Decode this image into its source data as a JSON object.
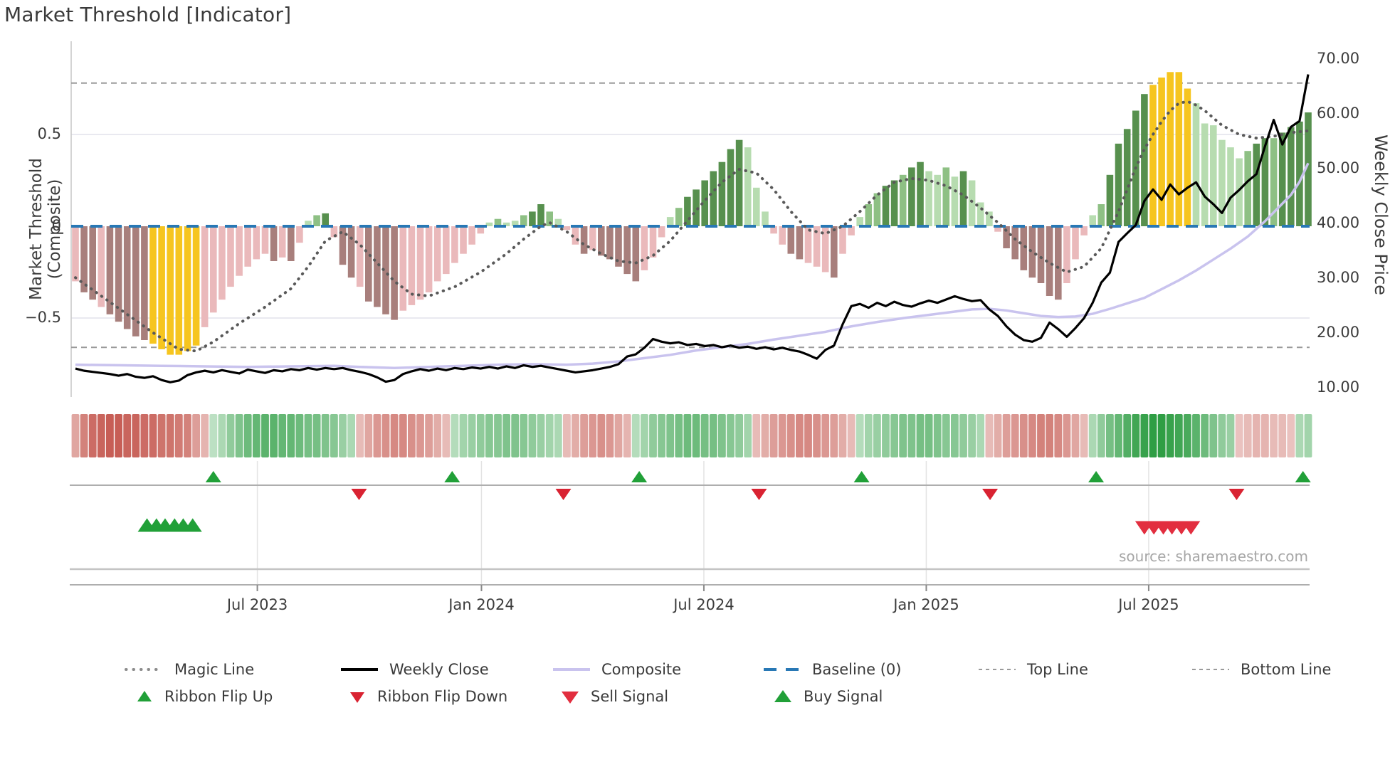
{
  "title": "Market Threshold [Indicator]",
  "source_text": "source: sharemaestro.com",
  "axes": {
    "left_label": "Market Threshold (Composite)",
    "right_label": "Weekly Close Price",
    "left_ticks": [
      "0.5",
      "0",
      "−0.5"
    ],
    "right_ticks": [
      "70.00",
      "60.00",
      "50.00",
      "40.00",
      "30.00",
      "20.00",
      "10.00"
    ],
    "x_ticks": [
      "Jul 2023",
      "Jan 2024",
      "Jul 2024",
      "Jan 2025",
      "Jul 2025"
    ]
  },
  "legend": {
    "row1": [
      {
        "label": "Magic Line"
      },
      {
        "label": "Weekly Close"
      },
      {
        "label": "Composite"
      },
      {
        "label": "Baseline (0)"
      },
      {
        "label": "Top Line"
      },
      {
        "label": "Bottom Line"
      }
    ],
    "row2": [
      {
        "label": "Ribbon Flip Up"
      },
      {
        "label": "Ribbon Flip Down"
      },
      {
        "label": "Sell Signal"
      },
      {
        "label": "Buy Signal"
      }
    ]
  },
  "colors": {
    "background": "#ffffff",
    "title_text": "#3a3a3a",
    "axis_text": "#3c3c3c",
    "grid": "#e9e9f0",
    "spine": "#c9c9c9",
    "separator": "#aeaeae",
    "panel_grid": "#e3e3e3",
    "baseline_blue": "#2878b5",
    "magic_line": "#595959",
    "weekly_close": "#000000",
    "composite_line": "#c9c3ee",
    "top_bottom_line": "#9a9a9a",
    "bar_pink": "#eab9bb",
    "bar_mauve": "#a87f7c",
    "bar_yellow": "#f6c51f",
    "bar_light_green": "#b7dcb0",
    "bar_mid_green": "#8ec084",
    "bar_dark_green": "#57904e",
    "ribbon_red": "#c4574e",
    "ribbon_green": "#2f9e44",
    "flip_up_green": "#21a038",
    "flip_down_red": "#d92332",
    "sell_red": "#e22e3f",
    "buy_green": "#21a038",
    "source_text": "#a6a6a6"
  },
  "chart_data": {
    "type": "bar+line",
    "title": "Market Threshold [Indicator]",
    "weeks": 144,
    "x_range_note": "weekly data, approx Feb 2023 - Nov 2025",
    "left_ylim": [
      -0.93,
      1.0
    ],
    "right_ylim": [
      8.3,
      73.0
    ],
    "baseline": 0,
    "top_line": 0.78,
    "bottom_line": -0.66,
    "x_tick_weeks": [
      21.1,
      47.1,
      72.9,
      98.7,
      124.5
    ],
    "left_tick_values": [
      0.5,
      0,
      -0.5
    ],
    "right_tick_values": [
      70,
      60,
      50,
      40,
      30,
      20,
      10
    ],
    "composite_bars": [
      [
        -0.3,
        "p"
      ],
      [
        -0.36,
        "m"
      ],
      [
        -0.4,
        "m"
      ],
      [
        -0.44,
        "p"
      ],
      [
        -0.48,
        "m"
      ],
      [
        -0.52,
        "m"
      ],
      [
        -0.56,
        "m"
      ],
      [
        -0.6,
        "m"
      ],
      [
        -0.62,
        "m"
      ],
      [
        -0.64,
        "y"
      ],
      [
        -0.67,
        "y"
      ],
      [
        -0.7,
        "y"
      ],
      [
        -0.7,
        "y"
      ],
      [
        -0.68,
        "y"
      ],
      [
        -0.65,
        "y"
      ],
      [
        -0.55,
        "p"
      ],
      [
        -0.47,
        "p"
      ],
      [
        -0.4,
        "p"
      ],
      [
        -0.33,
        "p"
      ],
      [
        -0.27,
        "p"
      ],
      [
        -0.22,
        "p"
      ],
      [
        -0.18,
        "p"
      ],
      [
        -0.15,
        "p"
      ],
      [
        -0.19,
        "m"
      ],
      [
        -0.17,
        "p"
      ],
      [
        -0.19,
        "m"
      ],
      [
        -0.09,
        "p"
      ],
      [
        0.03,
        "l"
      ],
      [
        0.06,
        "g"
      ],
      [
        0.07,
        "d"
      ],
      [
        -0.06,
        "p"
      ],
      [
        -0.21,
        "m"
      ],
      [
        -0.28,
        "m"
      ],
      [
        -0.33,
        "p"
      ],
      [
        -0.41,
        "m"
      ],
      [
        -0.44,
        "m"
      ],
      [
        -0.48,
        "m"
      ],
      [
        -0.51,
        "m"
      ],
      [
        -0.46,
        "p"
      ],
      [
        -0.43,
        "p"
      ],
      [
        -0.4,
        "p"
      ],
      [
        -0.36,
        "p"
      ],
      [
        -0.3,
        "p"
      ],
      [
        -0.26,
        "p"
      ],
      [
        -0.2,
        "p"
      ],
      [
        -0.15,
        "p"
      ],
      [
        -0.1,
        "p"
      ],
      [
        -0.04,
        "p"
      ],
      [
        0.02,
        "l"
      ],
      [
        0.04,
        "g"
      ],
      [
        0.02,
        "l"
      ],
      [
        0.03,
        "l"
      ],
      [
        0.06,
        "g"
      ],
      [
        0.08,
        "d"
      ],
      [
        0.12,
        "d"
      ],
      [
        0.08,
        "g"
      ],
      [
        0.04,
        "l"
      ],
      [
        -0.02,
        "p"
      ],
      [
        -0.1,
        "p"
      ],
      [
        -0.15,
        "m"
      ],
      [
        -0.13,
        "p"
      ],
      [
        -0.16,
        "m"
      ],
      [
        -0.18,
        "m"
      ],
      [
        -0.22,
        "m"
      ],
      [
        -0.26,
        "m"
      ],
      [
        -0.3,
        "m"
      ],
      [
        -0.24,
        "p"
      ],
      [
        -0.17,
        "p"
      ],
      [
        -0.06,
        "p"
      ],
      [
        0.05,
        "l"
      ],
      [
        0.1,
        "g"
      ],
      [
        0.16,
        "d"
      ],
      [
        0.2,
        "d"
      ],
      [
        0.25,
        "d"
      ],
      [
        0.3,
        "d"
      ],
      [
        0.35,
        "d"
      ],
      [
        0.42,
        "d"
      ],
      [
        0.47,
        "d"
      ],
      [
        0.43,
        "l"
      ],
      [
        0.21,
        "l"
      ],
      [
        0.08,
        "l"
      ],
      [
        -0.04,
        "p"
      ],
      [
        -0.1,
        "p"
      ],
      [
        -0.15,
        "m"
      ],
      [
        -0.18,
        "m"
      ],
      [
        -0.2,
        "p"
      ],
      [
        -0.22,
        "p"
      ],
      [
        -0.25,
        "p"
      ],
      [
        -0.28,
        "m"
      ],
      [
        -0.15,
        "p"
      ],
      [
        -0.05,
        "p"
      ],
      [
        0.05,
        "l"
      ],
      [
        0.12,
        "g"
      ],
      [
        0.18,
        "g"
      ],
      [
        0.22,
        "d"
      ],
      [
        0.25,
        "d"
      ],
      [
        0.28,
        "g"
      ],
      [
        0.32,
        "d"
      ],
      [
        0.35,
        "d"
      ],
      [
        0.3,
        "l"
      ],
      [
        0.28,
        "l"
      ],
      [
        0.32,
        "g"
      ],
      [
        0.27,
        "l"
      ],
      [
        0.3,
        "d"
      ],
      [
        0.25,
        "l"
      ],
      [
        0.13,
        "l"
      ],
      [
        0.08,
        "l"
      ],
      [
        -0.03,
        "p"
      ],
      [
        -0.12,
        "m"
      ],
      [
        -0.18,
        "m"
      ],
      [
        -0.24,
        "m"
      ],
      [
        -0.28,
        "m"
      ],
      [
        -0.31,
        "m"
      ],
      [
        -0.38,
        "m"
      ],
      [
        -0.4,
        "m"
      ],
      [
        -0.31,
        "p"
      ],
      [
        -0.18,
        "p"
      ],
      [
        -0.05,
        "p"
      ],
      [
        0.06,
        "l"
      ],
      [
        0.12,
        "g"
      ],
      [
        0.28,
        "d"
      ],
      [
        0.45,
        "d"
      ],
      [
        0.53,
        "d"
      ],
      [
        0.63,
        "d"
      ],
      [
        0.72,
        "d"
      ],
      [
        0.77,
        "y"
      ],
      [
        0.81,
        "y"
      ],
      [
        0.84,
        "y"
      ],
      [
        0.84,
        "y"
      ],
      [
        0.75,
        "y"
      ],
      [
        0.67,
        "l"
      ],
      [
        0.56,
        "l"
      ],
      [
        0.55,
        "l"
      ],
      [
        0.47,
        "l"
      ],
      [
        0.43,
        "l"
      ],
      [
        0.37,
        "l"
      ],
      [
        0.41,
        "g"
      ],
      [
        0.45,
        "d"
      ],
      [
        0.48,
        "d"
      ],
      [
        0.48,
        "g"
      ],
      [
        0.51,
        "d"
      ],
      [
        0.54,
        "d"
      ],
      [
        0.57,
        "d"
      ],
      [
        0.62,
        "d"
      ]
    ],
    "weekly_close": [
      13.5,
      13.1,
      12.9,
      12.7,
      12.5,
      12.2,
      12.5,
      12.0,
      11.8,
      12.1,
      11.4,
      11.0,
      11.3,
      12.3,
      12.8,
      13.1,
      12.8,
      13.2,
      12.9,
      12.6,
      13.3,
      13.0,
      12.7,
      13.2,
      13.0,
      13.4,
      13.2,
      13.6,
      13.3,
      13.6,
      13.4,
      13.6,
      13.2,
      12.9,
      12.5,
      11.9,
      11.1,
      11.4,
      12.5,
      13.0,
      13.4,
      13.1,
      13.5,
      13.2,
      13.6,
      13.4,
      13.7,
      13.5,
      13.8,
      13.5,
      13.9,
      13.6,
      14.1,
      13.8,
      14.0,
      13.7,
      13.4,
      13.1,
      12.8,
      13.0,
      13.2,
      13.5,
      13.8,
      14.3,
      15.7,
      16.1,
      17.3,
      18.9,
      18.4,
      18.1,
      18.3,
      17.8,
      18.0,
      17.6,
      17.8,
      17.4,
      17.7,
      17.3,
      17.5,
      17.1,
      17.4,
      17.0,
      17.3,
      16.9,
      16.6,
      16.0,
      15.3,
      16.9,
      17.7,
      21.6,
      24.9,
      25.3,
      24.6,
      25.5,
      24.9,
      25.7,
      25.1,
      24.8,
      25.4,
      25.9,
      25.5,
      26.1,
      26.7,
      26.2,
      25.8,
      26.0,
      24.3,
      23.1,
      21.2,
      19.7,
      18.7,
      18.4,
      19.1,
      21.9,
      20.7,
      19.3,
      20.9,
      22.7,
      25.5,
      29.2,
      31.0,
      36.6,
      38.2,
      39.7,
      44.1,
      46.2,
      44.3,
      47.1,
      45.3,
      46.5,
      47.5,
      44.9,
      43.5,
      41.9,
      44.7,
      46.1,
      47.7,
      49.0,
      54.1,
      58.9,
      54.4,
      57.6,
      58.7,
      67.2
    ],
    "magic_line_points": [
      [
        0,
        -0.28
      ],
      [
        3,
        -0.38
      ],
      [
        6,
        -0.48
      ],
      [
        9,
        -0.58
      ],
      [
        12,
        -0.67
      ],
      [
        14,
        -0.68
      ],
      [
        16,
        -0.63
      ],
      [
        19,
        -0.53
      ],
      [
        22,
        -0.44
      ],
      [
        25,
        -0.34
      ],
      [
        27,
        -0.22
      ],
      [
        29,
        -0.08
      ],
      [
        31,
        -0.03
      ],
      [
        33,
        -0.1
      ],
      [
        35,
        -0.2
      ],
      [
        37,
        -0.3
      ],
      [
        39,
        -0.37
      ],
      [
        41,
        -0.38
      ],
      [
        44,
        -0.33
      ],
      [
        47,
        -0.25
      ],
      [
        50,
        -0.15
      ],
      [
        52,
        -0.07
      ],
      [
        54,
        0.0
      ],
      [
        55,
        0.02
      ],
      [
        57,
        -0.03
      ],
      [
        59,
        -0.1
      ],
      [
        61,
        -0.15
      ],
      [
        63,
        -0.19
      ],
      [
        65,
        -0.2
      ],
      [
        67,
        -0.16
      ],
      [
        69,
        -0.08
      ],
      [
        71,
        0.03
      ],
      [
        73,
        0.14
      ],
      [
        75,
        0.24
      ],
      [
        77,
        0.31
      ],
      [
        79,
        0.29
      ],
      [
        81,
        0.2
      ],
      [
        83,
        0.08
      ],
      [
        85,
        -0.02
      ],
      [
        87,
        -0.04
      ],
      [
        89,
        0.0
      ],
      [
        91,
        0.08
      ],
      [
        93,
        0.17
      ],
      [
        95,
        0.24
      ],
      [
        97,
        0.26
      ],
      [
        99,
        0.25
      ],
      [
        101,
        0.22
      ],
      [
        103,
        0.17
      ],
      [
        105,
        0.1
      ],
      [
        107,
        0.02
      ],
      [
        109,
        -0.07
      ],
      [
        111,
        -0.14
      ],
      [
        113,
        -0.2
      ],
      [
        115,
        -0.25
      ],
      [
        117,
        -0.22
      ],
      [
        119,
        -0.12
      ],
      [
        120,
        -0.02
      ],
      [
        121,
        0.08
      ],
      [
        122,
        0.2
      ],
      [
        123,
        0.32
      ],
      [
        124,
        0.42
      ],
      [
        125,
        0.5
      ],
      [
        126,
        0.57
      ],
      [
        127,
        0.63
      ],
      [
        128,
        0.67
      ],
      [
        129,
        0.68
      ],
      [
        130,
        0.66
      ],
      [
        131,
        0.63
      ],
      [
        132,
        0.59
      ],
      [
        133,
        0.55
      ],
      [
        135,
        0.5
      ],
      [
        137,
        0.48
      ],
      [
        139,
        0.49
      ],
      [
        141,
        0.51
      ],
      [
        143,
        0.52
      ]
    ],
    "composite_line_points": [
      [
        0,
        14.2
      ],
      [
        5,
        14.1
      ],
      [
        10,
        14.0
      ],
      [
        15,
        13.9
      ],
      [
        20,
        13.8
      ],
      [
        25,
        13.9
      ],
      [
        30,
        14.0
      ],
      [
        33,
        13.8
      ],
      [
        37,
        13.6
      ],
      [
        41,
        13.8
      ],
      [
        45,
        14.0
      ],
      [
        49,
        14.2
      ],
      [
        53,
        14.3
      ],
      [
        57,
        14.2
      ],
      [
        60,
        14.4
      ],
      [
        63,
        14.8
      ],
      [
        66,
        15.4
      ],
      [
        69,
        16.0
      ],
      [
        72,
        16.8
      ],
      [
        75,
        17.4
      ],
      [
        78,
        18.0
      ],
      [
        81,
        18.8
      ],
      [
        84,
        19.5
      ],
      [
        87,
        20.2
      ],
      [
        90,
        21.2
      ],
      [
        93,
        22.0
      ],
      [
        96,
        22.7
      ],
      [
        99,
        23.3
      ],
      [
        102,
        23.9
      ],
      [
        104,
        24.3
      ],
      [
        106,
        24.4
      ],
      [
        108,
        24.1
      ],
      [
        110,
        23.6
      ],
      [
        112,
        23.1
      ],
      [
        114,
        22.9
      ],
      [
        116,
        23.0
      ],
      [
        118,
        23.5
      ],
      [
        120,
        24.4
      ],
      [
        122,
        25.4
      ],
      [
        124,
        26.4
      ],
      [
        126,
        28.0
      ],
      [
        128,
        29.6
      ],
      [
        130,
        31.4
      ],
      [
        132,
        33.4
      ],
      [
        134,
        35.4
      ],
      [
        136,
        37.6
      ],
      [
        138,
        40.4
      ],
      [
        140,
        43.6
      ],
      [
        141,
        45.2
      ],
      [
        142,
        47.6
      ],
      [
        143,
        51.0
      ]
    ],
    "ribbon": [
      -0.45,
      -0.7,
      -0.85,
      -0.9,
      -0.95,
      -0.95,
      -0.9,
      -0.9,
      -0.85,
      -0.85,
      -0.8,
      -0.8,
      -0.75,
      -0.7,
      -0.5,
      -0.35,
      0.2,
      0.3,
      0.45,
      0.55,
      0.65,
      0.7,
      0.75,
      0.75,
      0.7,
      0.7,
      0.65,
      0.6,
      0.6,
      0.55,
      0.5,
      0.4,
      0.3,
      -0.3,
      -0.45,
      -0.55,
      -0.6,
      -0.65,
      -0.65,
      -0.6,
      -0.55,
      -0.5,
      -0.4,
      -0.3,
      0.25,
      0.35,
      0.4,
      0.45,
      0.5,
      0.5,
      0.55,
      0.55,
      0.5,
      0.45,
      0.4,
      0.35,
      0.3,
      -0.3,
      -0.4,
      -0.5,
      -0.55,
      -0.6,
      -0.55,
      -0.45,
      -0.35,
      0.25,
      0.35,
      0.45,
      0.5,
      0.55,
      0.6,
      0.65,
      0.65,
      0.6,
      0.6,
      0.55,
      0.5,
      0.45,
      0.35,
      -0.3,
      -0.4,
      -0.5,
      -0.55,
      -0.6,
      -0.65,
      -0.65,
      -0.6,
      -0.55,
      -0.5,
      -0.4,
      -0.3,
      0.25,
      0.35,
      0.4,
      0.45,
      0.5,
      0.55,
      0.55,
      0.6,
      0.6,
      0.55,
      0.5,
      0.5,
      0.45,
      0.4,
      0.3,
      -0.3,
      -0.4,
      -0.5,
      -0.55,
      -0.6,
      -0.65,
      -0.7,
      -0.7,
      -0.65,
      -0.55,
      -0.45,
      -0.3,
      0.3,
      0.45,
      0.6,
      0.7,
      0.8,
      0.9,
      0.95,
      1.0,
      1.0,
      0.95,
      0.9,
      0.85,
      0.75,
      0.65,
      0.55,
      0.45,
      0.4,
      -0.25,
      -0.3,
      -0.35,
      -0.35,
      -0.3,
      -0.3,
      -0.25,
      0.3,
      0.35
    ],
    "signals": {
      "ribbon_flip_up_weeks": [
        16.0,
        43.7,
        65.4,
        91.2,
        118.4,
        142.4
      ],
      "ribbon_flip_down_weeks": [
        32.9,
        56.6,
        79.3,
        106.1,
        134.7
      ],
      "buy_weeks": [
        8.3,
        9.4,
        10.4,
        11.5,
        12.5,
        13.6
      ],
      "sell_weeks": [
        124.0,
        125.1,
        126.2,
        127.2,
        128.3,
        129.4
      ]
    }
  }
}
